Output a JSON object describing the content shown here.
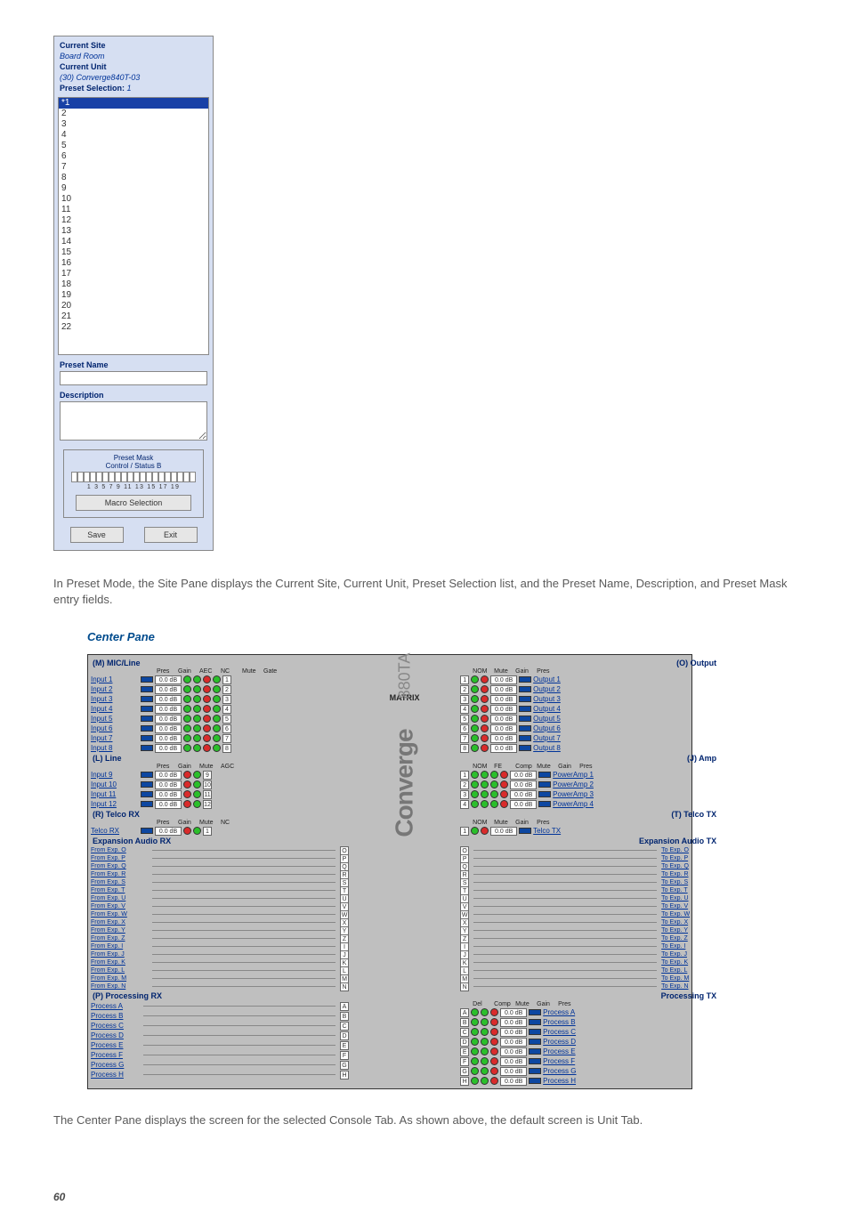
{
  "preset_pane": {
    "current_site_label": "Current Site",
    "current_site_value": "Board Room",
    "current_unit_label": "Current Unit",
    "current_unit_value": "(30) Converge840T-03",
    "preset_selection_label": "Preset Selection:",
    "preset_selection_value": "1",
    "list": [
      "*1",
      "2",
      "3",
      "4",
      "5",
      "6",
      "7",
      "8",
      "9",
      "10",
      "11",
      "12",
      "13",
      "14",
      "15",
      "16",
      "17",
      "18",
      "19",
      "20",
      "21",
      "22"
    ],
    "preset_name_label": "Preset Name",
    "description_label": "Description",
    "mask_title1": "Preset Mask",
    "mask_title2": "Control / Status B",
    "mask_numbers": "1  3  5  7  9 11 13 15 17 19",
    "macro_selection": "Macro Selection",
    "save": "Save",
    "exit": "Exit"
  },
  "para1": "In Preset Mode, the Site Pane displays the Current Site, Current Unit, Preset Selection list, and the Preset Name, Description, and Preset Mask entry fields.",
  "center_heading": "Center Pane",
  "center_pane": {
    "mic": {
      "title": "(M) MIC/Line",
      "heads": [
        "Pres",
        "Gain",
        "AEC",
        "NC",
        "Mute",
        "Gate"
      ],
      "rows": [
        {
          "name": "Input 1",
          "n": "1"
        },
        {
          "name": "Input 2",
          "n": "2"
        },
        {
          "name": "Input 3",
          "n": "3"
        },
        {
          "name": "Input 4",
          "n": "4"
        },
        {
          "name": "Input 5",
          "n": "5"
        },
        {
          "name": "Input 6",
          "n": "6"
        },
        {
          "name": "Input 7",
          "n": "7"
        },
        {
          "name": "Input 8",
          "n": "8"
        }
      ],
      "gain_value": "0.0 dB"
    },
    "out": {
      "title": "(O) Output",
      "heads": [
        "NOM",
        "Mute",
        "Gain",
        "Pres"
      ],
      "rows": [
        {
          "name": "Output 1",
          "n": "1"
        },
        {
          "name": "Output 2",
          "n": "2"
        },
        {
          "name": "Output 3",
          "n": "3"
        },
        {
          "name": "Output 4",
          "n": "4"
        },
        {
          "name": "Output 5",
          "n": "5"
        },
        {
          "name": "Output 6",
          "n": "6"
        },
        {
          "name": "Output 7",
          "n": "7"
        },
        {
          "name": "Output 8",
          "n": "8"
        }
      ],
      "gain_value": "0.0 dB"
    },
    "line": {
      "title": "(L) Line",
      "heads": [
        "Pres",
        "Gain",
        "Mute",
        "AGC"
      ],
      "rows": [
        {
          "name": "Input 9",
          "n": "9"
        },
        {
          "name": "Input 10",
          "n": "10"
        },
        {
          "name": "Input 11",
          "n": "11"
        },
        {
          "name": "Input 12",
          "n": "12"
        }
      ],
      "gain_value": "0.0 dB"
    },
    "amp": {
      "title": "(J) Amp",
      "heads": [
        "NOM",
        "FE",
        "Comp",
        "Mute",
        "Gain",
        "Pres"
      ],
      "rows": [
        {
          "name": "PowerAmp 1",
          "n": "1"
        },
        {
          "name": "PowerAmp 2",
          "n": "2"
        },
        {
          "name": "PowerAmp 3",
          "n": "3"
        },
        {
          "name": "PowerAmp 4",
          "n": "4"
        }
      ],
      "gain_value": "0.0 dB"
    },
    "telco_rx": {
      "title": "(R) Telco RX",
      "heads": [
        "Pres",
        "Gain",
        "Mute",
        "NC"
      ],
      "name": "Telco RX",
      "n": "1",
      "gain_value": "0.0 dB"
    },
    "telco_tx": {
      "title": "(T) Telco TX",
      "heads": [
        "NOM",
        "Mute",
        "Gain",
        "Pres"
      ],
      "name": "Telco TX",
      "n": "1",
      "gain_value": "0.0 dB"
    },
    "exp_rx": {
      "title": "Expansion Audio RX",
      "rows": [
        {
          "name": "From Exp. O",
          "n": "O"
        },
        {
          "name": "From Exp. P",
          "n": "P"
        },
        {
          "name": "From Exp. Q",
          "n": "Q"
        },
        {
          "name": "From Exp. R",
          "n": "R"
        },
        {
          "name": "From Exp. S",
          "n": "S"
        },
        {
          "name": "From Exp. T",
          "n": "T"
        },
        {
          "name": "From Exp. U",
          "n": "U"
        },
        {
          "name": "From Exp. V",
          "n": "V"
        },
        {
          "name": "From Exp. W",
          "n": "W"
        },
        {
          "name": "From Exp. X",
          "n": "X"
        },
        {
          "name": "From Exp. Y",
          "n": "Y"
        },
        {
          "name": "From Exp. Z",
          "n": "Z"
        },
        {
          "name": "From Exp. I",
          "n": "I"
        },
        {
          "name": "From Exp. J",
          "n": "J"
        },
        {
          "name": "From Exp. K",
          "n": "K"
        },
        {
          "name": "From Exp. L",
          "n": "L"
        },
        {
          "name": "From Exp. M",
          "n": "M"
        },
        {
          "name": "From Exp. N",
          "n": "N"
        }
      ]
    },
    "exp_tx": {
      "title": "Expansion Audio TX",
      "rows": [
        {
          "name": "To Exp. O",
          "n": "O"
        },
        {
          "name": "To Exp. P",
          "n": "P"
        },
        {
          "name": "To Exp. Q",
          "n": "Q"
        },
        {
          "name": "To Exp. R",
          "n": "R"
        },
        {
          "name": "To Exp. S",
          "n": "S"
        },
        {
          "name": "To Exp. T",
          "n": "T"
        },
        {
          "name": "To Exp. U",
          "n": "U"
        },
        {
          "name": "To Exp. V",
          "n": "V"
        },
        {
          "name": "To Exp. W",
          "n": "W"
        },
        {
          "name": "To Exp. X",
          "n": "X"
        },
        {
          "name": "To Exp. Y",
          "n": "Y"
        },
        {
          "name": "To Exp. Z",
          "n": "Z"
        },
        {
          "name": "To Exp. I",
          "n": "I"
        },
        {
          "name": "To Exp. J",
          "n": "J"
        },
        {
          "name": "To Exp. K",
          "n": "K"
        },
        {
          "name": "To Exp. L",
          "n": "L"
        },
        {
          "name": "To Exp. M",
          "n": "M"
        },
        {
          "name": "To Exp. N",
          "n": "N"
        }
      ]
    },
    "proc_rx": {
      "title": "(P) Processing RX",
      "rows": [
        {
          "name": "Process A",
          "n": "A"
        },
        {
          "name": "Process B",
          "n": "B"
        },
        {
          "name": "Process C",
          "n": "C"
        },
        {
          "name": "Process D",
          "n": "D"
        },
        {
          "name": "Process E",
          "n": "E"
        },
        {
          "name": "Process F",
          "n": "F"
        },
        {
          "name": "Process G",
          "n": "G"
        },
        {
          "name": "Process H",
          "n": "H"
        }
      ]
    },
    "proc_tx": {
      "title": "Processing TX",
      "heads": [
        "Del",
        "Comp",
        "Mute",
        "Gain",
        "Pres"
      ],
      "rows": [
        {
          "name": "Process A",
          "n": "A"
        },
        {
          "name": "Process B",
          "n": "B"
        },
        {
          "name": "Process C",
          "n": "C"
        },
        {
          "name": "Process D",
          "n": "D"
        },
        {
          "name": "Process E",
          "n": "E"
        },
        {
          "name": "Process F",
          "n": "F"
        },
        {
          "name": "Process G",
          "n": "G"
        },
        {
          "name": "Process H",
          "n": "H"
        }
      ],
      "gain_value": "0.0 dB"
    },
    "matrix_label": "MATRIX",
    "converge_word": "Converge",
    "converge_model": "880TA"
  },
  "para2": "The Center Pane displays the screen for the selected Console Tab. As shown above, the default screen is Unit Tab.",
  "page_number": "60"
}
